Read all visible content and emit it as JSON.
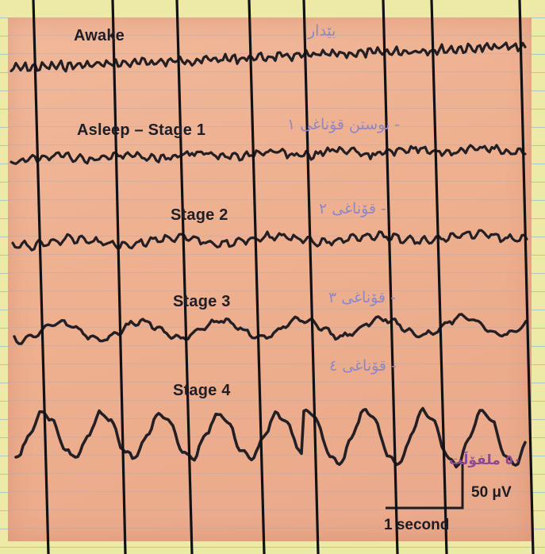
{
  "stages": [
    {
      "label": "Awake",
      "translation": "بێدار"
    },
    {
      "label": "Asleep – Stage 1",
      "translation": "نوستن قۆناغی ۱ -"
    },
    {
      "label": "Stage 2",
      "translation": "قۆناغی ۲ -"
    },
    {
      "label": "Stage 3",
      "translation": "قۆناغی ۳ -"
    },
    {
      "label": "Stage 4",
      "translation": "قۆناغی ٤ -"
    }
  ],
  "scale": {
    "amplitude_label": "50 μV",
    "amplitude_translation": "٥٠ ملفۆڵت",
    "time_label": "1 second"
  },
  "colors": {
    "sheet": "#eeb08f",
    "trace": "#231f24",
    "translation_ink": "#8e86c9"
  }
}
